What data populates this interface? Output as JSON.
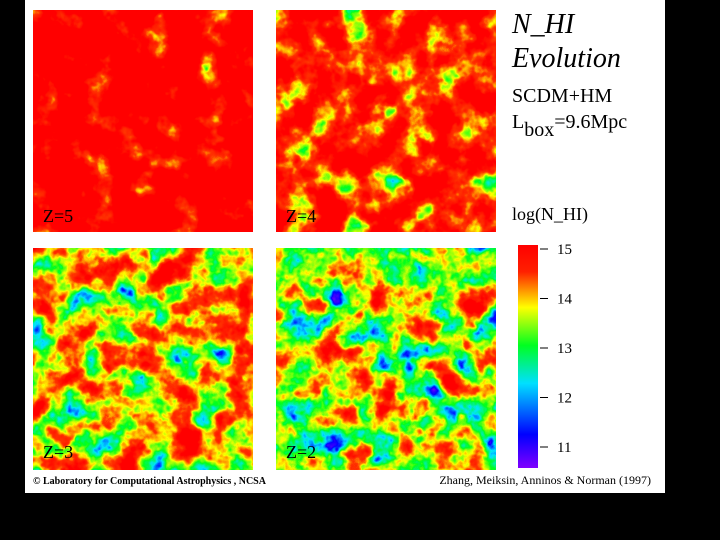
{
  "title": "N_HI",
  "subtitle": "Evolution",
  "model": "SCDM+HM",
  "box": {
    "label": "L",
    "subscript": "box",
    "value": "=9.6Mpc"
  },
  "colorbar": {
    "label": "log(N_HI)",
    "ticks": [
      15,
      14,
      13,
      12,
      11
    ]
  },
  "panels": [
    {
      "label": "Z=5"
    },
    {
      "label": "Z=4"
    },
    {
      "label": "Z=3"
    },
    {
      "label": "Z=2"
    }
  ],
  "credits": {
    "left": "© Laboratory for Computational Astrophysics , NCSA",
    "right": "Zhang, Meiksin, Anninos & Norman (1997)"
  }
}
